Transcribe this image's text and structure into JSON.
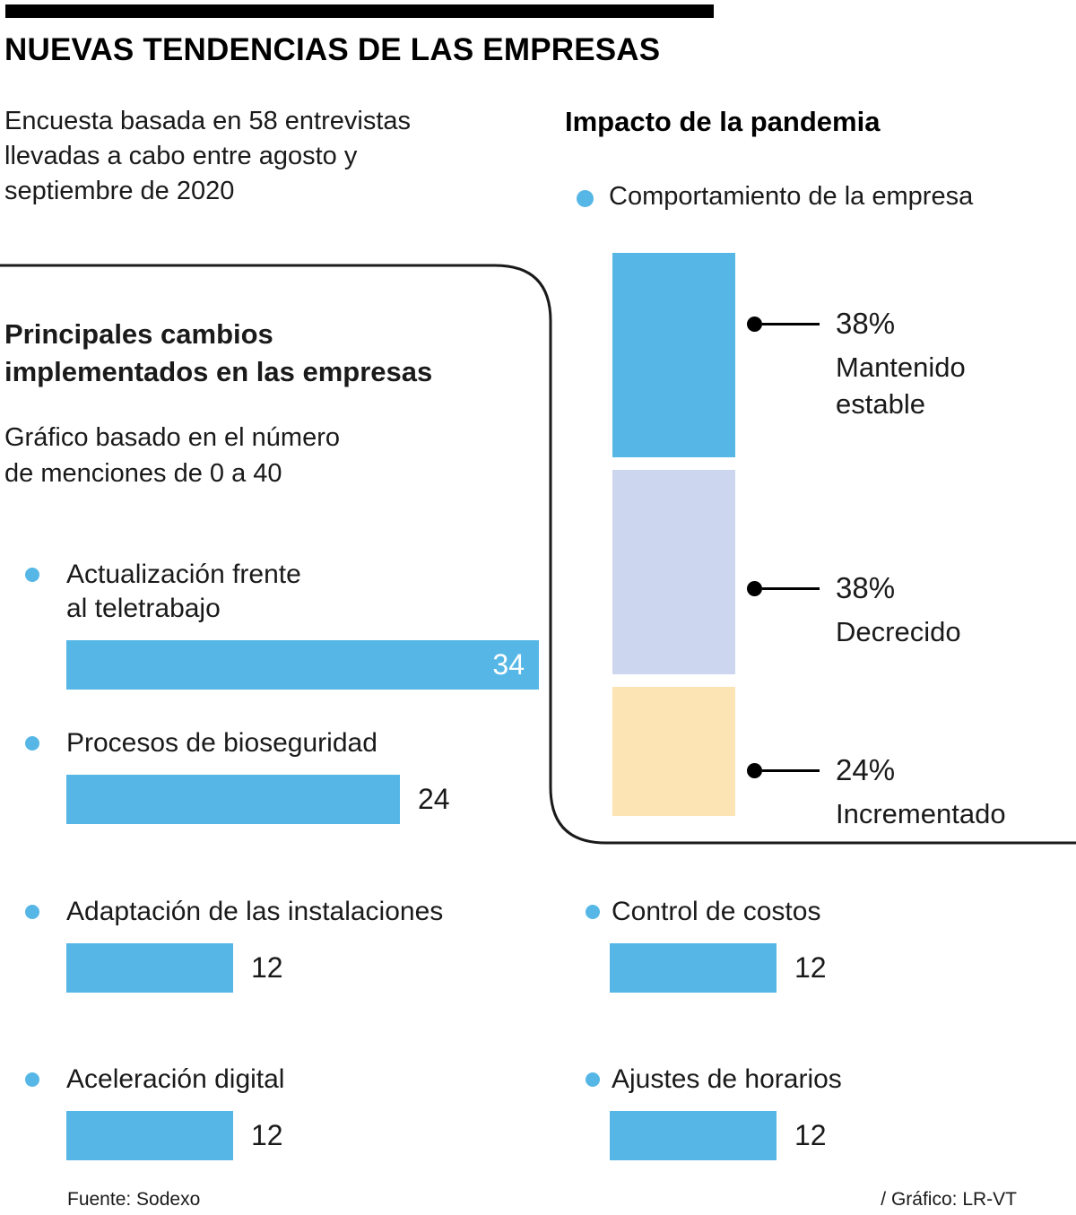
{
  "header": {
    "title": "NUEVAS TENDENCIAS DE LAS EMPRESAS",
    "subtitle": "Encuesta basada en 58 entrevistas\nllevadas a cabo entre agosto y\nseptiembre de 2020"
  },
  "pandemic": {
    "title": "Impacto de la pandemia",
    "legend": "Comportamiento de la empresa",
    "segments": [
      {
        "pct": "38%",
        "label": "Mantenido\nestable",
        "value": 38,
        "color": "#56b7e6"
      },
      {
        "pct": "38%",
        "label": "Decrecido",
        "value": 38,
        "color": "#ccd6ee"
      },
      {
        "pct": "24%",
        "label": "Incrementado",
        "value": 24,
        "color": "#fce4b4"
      }
    ]
  },
  "changes": {
    "title": "Principales cambios\nimplementados en las empresas",
    "subtitle": "Gráfico basado en el número\nde menciones de 0 a 40",
    "items": [
      {
        "label": "Actualización frente\nal teletrabajo",
        "value": 34
      },
      {
        "label": "Procesos de bioseguridad",
        "value": 24
      },
      {
        "label": "Adaptación de las instalaciones",
        "value": 12
      },
      {
        "label": "Aceleración digital",
        "value": 12
      }
    ]
  },
  "extras": {
    "items": [
      {
        "label": "Control de costos",
        "value": 12
      },
      {
        "label": "Ajustes de horarios",
        "value": 12
      }
    ]
  },
  "footer": {
    "source": "Fuente: Sodexo",
    "credit": "/ Gráfico: LR-VT"
  },
  "colors": {
    "bar_blue": "#56b7e6",
    "lavender": "#ccd6ee",
    "cream": "#fce4b4",
    "line": "#1a1a1a"
  },
  "chart_data": [
    {
      "type": "bar",
      "orientation": "horizontal",
      "title": "Principales cambios implementados en las empresas",
      "subtitle": "Gráfico basado en el número de menciones de 0 a 40",
      "categories": [
        "Actualización frente al teletrabajo",
        "Procesos de bioseguridad",
        "Adaptación de las instalaciones",
        "Aceleración digital",
        "Control de costos",
        "Ajustes de horarios"
      ],
      "values": [
        34,
        24,
        12,
        12,
        12,
        12
      ],
      "xlabel": "Número de menciones",
      "ylabel": "",
      "xlim": [
        0,
        40
      ],
      "grid": false,
      "bar_color": "#56b7e6"
    },
    {
      "type": "bar",
      "orientation": "vertical-stacked",
      "title": "Impacto de la pandemia",
      "legend": "Comportamiento de la empresa",
      "categories": [
        "Mantenido estable",
        "Decrecido",
        "Incrementado"
      ],
      "values": [
        38,
        38,
        24
      ],
      "unit": "%",
      "colors": [
        "#56b7e6",
        "#ccd6ee",
        "#fce4b4"
      ],
      "annotations": [
        "38% Mantenido estable",
        "38% Decrecido",
        "24% Incrementado"
      ]
    }
  ]
}
